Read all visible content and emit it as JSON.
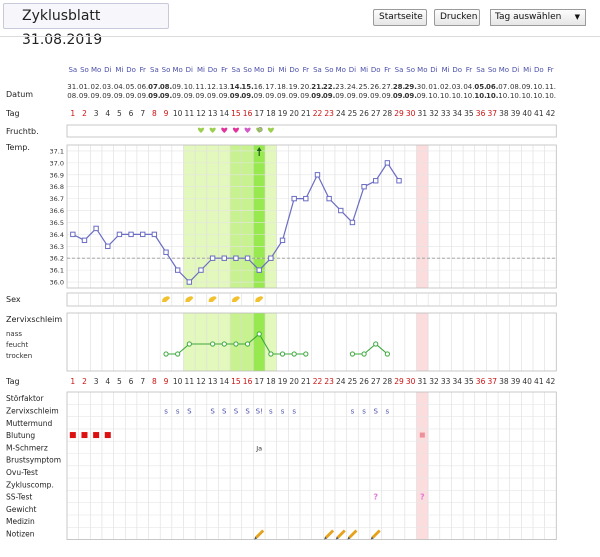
{
  "header": {
    "title": "Zyklusblatt 31.08.2019",
    "startseite_label": "Startseite",
    "drucken_label": "Drucken",
    "tag_select_value": "Tag auswählen"
  },
  "labels": {
    "datum": "Datum",
    "tag": "Tag",
    "fruchtb": "Fruchtb.",
    "temp": "Temp.",
    "sex": "Sex",
    "zervixschleim": "Zervixschleim",
    "mucus_levels": [
      "nass",
      "feucht",
      "trocken"
    ],
    "tag_bottom": "Tag",
    "details": [
      "Störfaktor",
      "Zervixschleim",
      "Muttermund",
      "Blutung",
      "M-Schmerz",
      "Brustsymptom",
      "Ovu-Test",
      "Zykluscomp.",
      "SS-Test",
      "Gewicht",
      "Medizin",
      "Notizen"
    ]
  },
  "weekdays": [
    "Sa",
    "So",
    "Mo",
    "Di",
    "Mi",
    "Do",
    "Fr",
    "Sa",
    "So",
    "Mo",
    "Di",
    "Mi",
    "Do",
    "Fr",
    "Sa",
    "So",
    "Mo",
    "Di",
    "Mi",
    "Do",
    "Fr",
    "Sa",
    "So",
    "Mo",
    "Di",
    "Mi",
    "Do",
    "Fr",
    "Sa",
    "So",
    "Mo",
    "Di",
    "Mi",
    "Do",
    "Fr",
    "Sa",
    "So",
    "Mo",
    "Di",
    "Mi",
    "Do",
    "Fr"
  ],
  "dates_top": [
    "31.",
    "01.",
    "02.",
    "03.",
    "04.",
    "05.",
    "06.",
    "07.",
    "08.",
    "09.",
    "10.",
    "11.",
    "12.",
    "13.",
    "14.",
    "15.",
    "16.",
    "17.",
    "18.",
    "19.",
    "20.",
    "21.",
    "22.",
    "23.",
    "24.",
    "25.",
    "26.",
    "27.",
    "28.",
    "29.",
    "30.",
    "01.",
    "02.",
    "03.",
    "04.",
    "05.",
    "06.",
    "07.",
    "08.",
    "09.",
    "10.",
    "11."
  ],
  "dates_bottom": [
    "08.",
    "09.",
    "09.",
    "09.",
    "09.",
    "09.",
    "09.",
    "09.",
    "09.",
    "09.",
    "09.",
    "09.",
    "09.",
    "09.",
    "09.",
    "09.",
    "09.",
    "09.",
    "09.",
    "09.",
    "09.",
    "09.",
    "09.",
    "09.",
    "09.",
    "09.",
    "09.",
    "09.",
    "09.",
    "09.",
    "09.",
    "10.",
    "10.",
    "10.",
    "10.",
    "10.",
    "10.",
    "10.",
    "10.",
    "10.",
    "10.",
    "10."
  ],
  "cycle_days": [
    "1",
    "2",
    "3",
    "4",
    "5",
    "6",
    "7",
    "8",
    "9",
    "10",
    "11",
    "12",
    "13",
    "14",
    "15",
    "16",
    "17",
    "18",
    "19",
    "20",
    "21",
    "22",
    "23",
    "24",
    "25",
    "26",
    "27",
    "28",
    "29",
    "30",
    "31",
    "32",
    "33",
    "34",
    "35",
    "36",
    "37",
    "38",
    "39",
    "40",
    "41",
    "42"
  ],
  "red_days": [
    1,
    2,
    8,
    9,
    15,
    16,
    22,
    23,
    29,
    30,
    36,
    37
  ],
  "bold_date_indices": [
    7,
    8,
    14,
    15,
    21,
    22,
    28,
    29,
    35,
    36
  ],
  "temp_axis": [
    "37.1",
    "37.0",
    "36.9",
    "36.8",
    "36.7",
    "36.6",
    "36.5",
    "36.4",
    "36.3",
    "36.2",
    "36.1",
    "36.0"
  ],
  "chart_data": {
    "type": "line",
    "x": [
      1,
      2,
      3,
      4,
      5,
      6,
      7,
      8,
      9,
      10,
      11,
      12,
      13,
      14,
      15,
      16,
      17,
      18,
      19,
      20,
      21,
      22,
      23,
      24,
      25,
      26,
      27,
      28,
      29
    ],
    "values": [
      36.4,
      36.35,
      36.45,
      36.3,
      36.4,
      36.4,
      36.4,
      36.4,
      36.25,
      36.1,
      36.0,
      36.1,
      36.2,
      36.2,
      36.2,
      36.2,
      36.1,
      36.2,
      36.35,
      36.7,
      36.7,
      36.9,
      36.7,
      36.6,
      36.5,
      36.8,
      36.85,
      37.0,
      36.85
    ],
    "ylim": [
      35.95,
      37.15
    ],
    "coverline": 36.2,
    "fertile_window_days": [
      11,
      18
    ],
    "peak_day": 17,
    "today_day": 31,
    "mucus": {
      "levels": [
        "trocken",
        "feucht",
        "nass"
      ],
      "groups": [
        [
          [
            9,
            0
          ],
          [
            10,
            0
          ],
          [
            11,
            1
          ],
          [
            13,
            1
          ],
          [
            14,
            1
          ],
          [
            15,
            1
          ],
          [
            16,
            1
          ],
          [
            17,
            2
          ],
          [
            18,
            0
          ],
          [
            19,
            0
          ],
          [
            20,
            0
          ],
          [
            21,
            0
          ]
        ],
        [
          [
            25,
            0
          ],
          [
            26,
            0
          ],
          [
            27,
            1
          ],
          [
            28,
            0
          ]
        ]
      ]
    },
    "fertility_hearts": [
      {
        "day": 12,
        "color": "#9ccf4e"
      },
      {
        "day": 13,
        "color": "#9ccf4e"
      },
      {
        "day": 14,
        "color": "#e2339a"
      },
      {
        "day": 15,
        "color": "#e2339a"
      },
      {
        "day": 16,
        "color": "#d15cc7"
      },
      {
        "day": 17,
        "color": "#9ccf4e"
      }
    ],
    "sex_days": [
      9,
      11,
      13,
      15,
      17
    ],
    "detail_marks": {
      "zervixschleim": [
        [
          9,
          "s"
        ],
        [
          10,
          "s"
        ],
        [
          11,
          "S"
        ],
        [
          13,
          "S"
        ],
        [
          14,
          "S"
        ],
        [
          15,
          "S"
        ],
        [
          16,
          "S"
        ],
        [
          17,
          "S!"
        ],
        [
          18,
          "s"
        ],
        [
          19,
          "s"
        ],
        [
          20,
          "s"
        ],
        [
          25,
          "s"
        ],
        [
          26,
          "s"
        ],
        [
          27,
          "S"
        ],
        [
          28,
          "s"
        ]
      ],
      "m_schmerz": [
        [
          17,
          "Ja"
        ]
      ],
      "blutung_days": [
        1,
        2,
        3,
        4
      ],
      "blutung_light_days": [
        31
      ],
      "ss_test_days": [
        27,
        31
      ],
      "notizen_days": [
        17,
        23,
        24,
        25,
        27
      ]
    }
  },
  "colors": {
    "weekday": "#4a4fa8",
    "red_day": "#cc1111",
    "line": "#6b6dc4",
    "mucus": "#3da83d",
    "sex": "#f2c12e",
    "fertile_light": "#e3f8bd",
    "fertile_mid": "#c8f290",
    "fertile_peak": "#98e84f",
    "today": "#fbdddd",
    "blutung": "#dd1111",
    "ss_test": "#e07ad9",
    "notiz": "#e5a21a"
  }
}
